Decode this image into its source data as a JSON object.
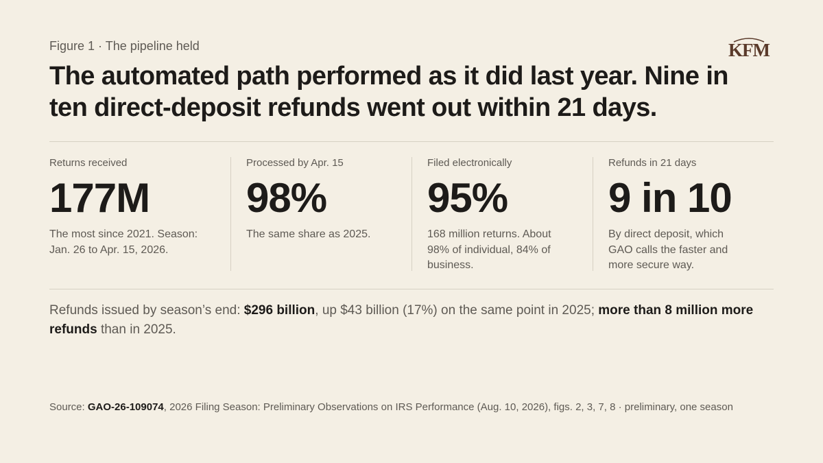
{
  "header": {
    "kicker": "Figure 1 · The pipeline held",
    "logo_text": "KFM",
    "headline": "The automated path performed as it did last year. Nine in ten direct-deposit refunds went out within 21 days."
  },
  "stats": [
    {
      "label": "Returns received",
      "value": "177M",
      "note": "The most since 2021. Season: Jan. 26 to Apr. 15, 2026."
    },
    {
      "label": "Processed by Apr. 15",
      "value": "98%",
      "note": "The same share as 2025."
    },
    {
      "label": "Filed electronically",
      "value": "95%",
      "note": "168 million returns. About 98% of individual, 84% of business."
    },
    {
      "label": "Refunds in 21 days",
      "value": "9 in 10",
      "note": "By direct deposit, which GAO calls the faster and more secure way."
    }
  ],
  "summary": {
    "prefix": "Refunds issued by season’s end: ",
    "amount": "$296 billion",
    "middle": ", up $43 billion (17%) on the same point in 2025; ",
    "highlight": "more than 8 million more refunds",
    "suffix": " than in 2025."
  },
  "source": {
    "prefix": "Source: ",
    "report_id": "GAO-26-109074",
    "text": ", 2026 Filing Season: Preliminary Observations on IRS Performance (Aug. 10, 2026), figs. 2, 3, 7, 8 · preliminary, one season"
  },
  "colors": {
    "background": "#f4efe4",
    "text_primary": "#1d1b19",
    "text_secondary": "#5e5a54",
    "rule": "#d6d0c3",
    "logo": "#5a3a2a"
  }
}
